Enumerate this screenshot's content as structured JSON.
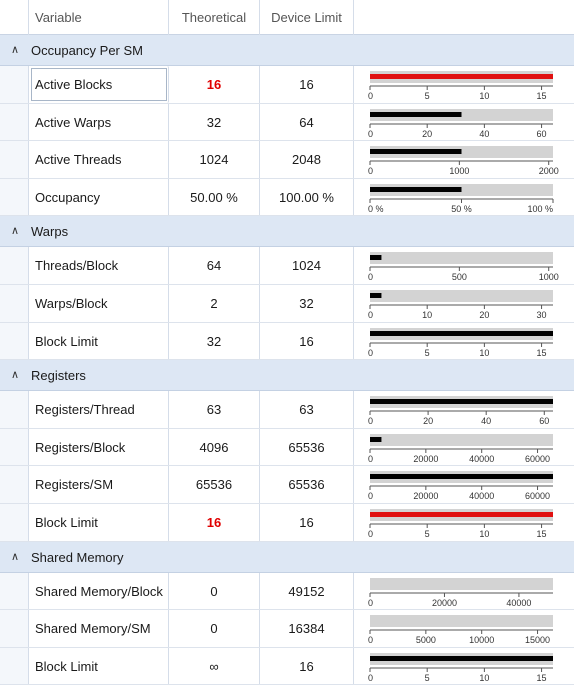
{
  "header": {
    "variable": "Variable",
    "theoretical": "Theoretical",
    "device_limit": "Device Limit"
  },
  "sections": [
    {
      "title": "Occupancy Per SM",
      "rows": [
        {
          "label": "Active Blocks",
          "theoretical": "16",
          "device": "16",
          "highlight": true,
          "selected": true,
          "bar": {
            "value": 16,
            "max": 16,
            "color": "#e01010",
            "ticks": [
              "0",
              "5",
              "10",
              "15"
            ],
            "tickvals": [
              0,
              5,
              10,
              15
            ]
          }
        },
        {
          "label": "Active Warps",
          "theoretical": "32",
          "device": "64",
          "bar": {
            "value": 32,
            "max": 64,
            "color": "#000000",
            "ticks": [
              "0",
              "20",
              "40",
              "60"
            ],
            "tickvals": [
              0,
              20,
              40,
              60
            ]
          }
        },
        {
          "label": "Active Threads",
          "theoretical": "1024",
          "device": "2048",
          "bar": {
            "value": 1024,
            "max": 2048,
            "color": "#000000",
            "ticks": [
              "0",
              "1000",
              "2000"
            ],
            "tickvals": [
              0,
              1000,
              2000
            ]
          }
        },
        {
          "label": "Occupancy",
          "theoretical": "50.00 %",
          "device": "100.00 %",
          "bar": {
            "value": 50,
            "max": 100,
            "color": "#000000",
            "ticks": [
              "0 %",
              "50 %",
              "100 %"
            ],
            "tickvals": [
              0,
              50,
              100
            ]
          }
        }
      ]
    },
    {
      "title": "Warps",
      "rows": [
        {
          "label": "Threads/Block",
          "theoretical": "64",
          "device": "1024",
          "bar": {
            "value": 64,
            "max": 1024,
            "color": "#000000",
            "ticks": [
              "0",
              "500",
              "1000"
            ],
            "tickvals": [
              0,
              500,
              1000
            ]
          }
        },
        {
          "label": "Warps/Block",
          "theoretical": "2",
          "device": "32",
          "bar": {
            "value": 2,
            "max": 32,
            "color": "#000000",
            "ticks": [
              "0",
              "10",
              "20",
              "30"
            ],
            "tickvals": [
              0,
              10,
              20,
              30
            ]
          }
        },
        {
          "label": "Block Limit",
          "theoretical": "32",
          "device": "16",
          "bar": {
            "value": 16,
            "max": 16,
            "color": "#000000",
            "ticks": [
              "0",
              "5",
              "10",
              "15"
            ],
            "tickvals": [
              0,
              5,
              10,
              15
            ]
          }
        }
      ]
    },
    {
      "title": "Registers",
      "rows": [
        {
          "label": "Registers/Thread",
          "theoretical": "63",
          "device": "63",
          "bar": {
            "value": 63,
            "max": 63,
            "color": "#000000",
            "ticks": [
              "0",
              "20",
              "40",
              "60"
            ],
            "tickvals": [
              0,
              20,
              40,
              60
            ]
          }
        },
        {
          "label": "Registers/Block",
          "theoretical": "4096",
          "device": "65536",
          "bar": {
            "value": 4096,
            "max": 65536,
            "color": "#000000",
            "ticks": [
              "0",
              "20000",
              "40000",
              "60000"
            ],
            "tickvals": [
              0,
              20000,
              40000,
              60000
            ]
          }
        },
        {
          "label": "Registers/SM",
          "theoretical": "65536",
          "device": "65536",
          "bar": {
            "value": 65536,
            "max": 65536,
            "color": "#000000",
            "ticks": [
              "0",
              "20000",
              "40000",
              "60000"
            ],
            "tickvals": [
              0,
              20000,
              40000,
              60000
            ]
          }
        },
        {
          "label": "Block Limit",
          "theoretical": "16",
          "device": "16",
          "highlight": true,
          "bar": {
            "value": 16,
            "max": 16,
            "color": "#e01010",
            "ticks": [
              "0",
              "5",
              "10",
              "15"
            ],
            "tickvals": [
              0,
              5,
              10,
              15
            ]
          }
        }
      ]
    },
    {
      "title": "Shared Memory",
      "rows": [
        {
          "label": "Shared Memory/Block",
          "theoretical": "0",
          "device": "49152",
          "bar": {
            "value": 0,
            "max": 49152,
            "color": "#000000",
            "ticks": [
              "0",
              "20000",
              "40000"
            ],
            "tickvals": [
              0,
              20000,
              40000
            ]
          }
        },
        {
          "label": "Shared Memory/SM",
          "theoretical": "0",
          "device": "16384",
          "bar": {
            "value": 0,
            "max": 16384,
            "color": "#000000",
            "ticks": [
              "0",
              "5000",
              "10000",
              "15000"
            ],
            "tickvals": [
              0,
              5000,
              10000,
              15000
            ]
          }
        },
        {
          "label": "Block Limit",
          "theoretical": "∞",
          "device": "16",
          "bar": {
            "value": 16,
            "max": 16,
            "color": "#000000",
            "ticks": [
              "0",
              "5",
              "10",
              "15"
            ],
            "tickvals": [
              0,
              5,
              10,
              15
            ]
          }
        }
      ]
    }
  ]
}
